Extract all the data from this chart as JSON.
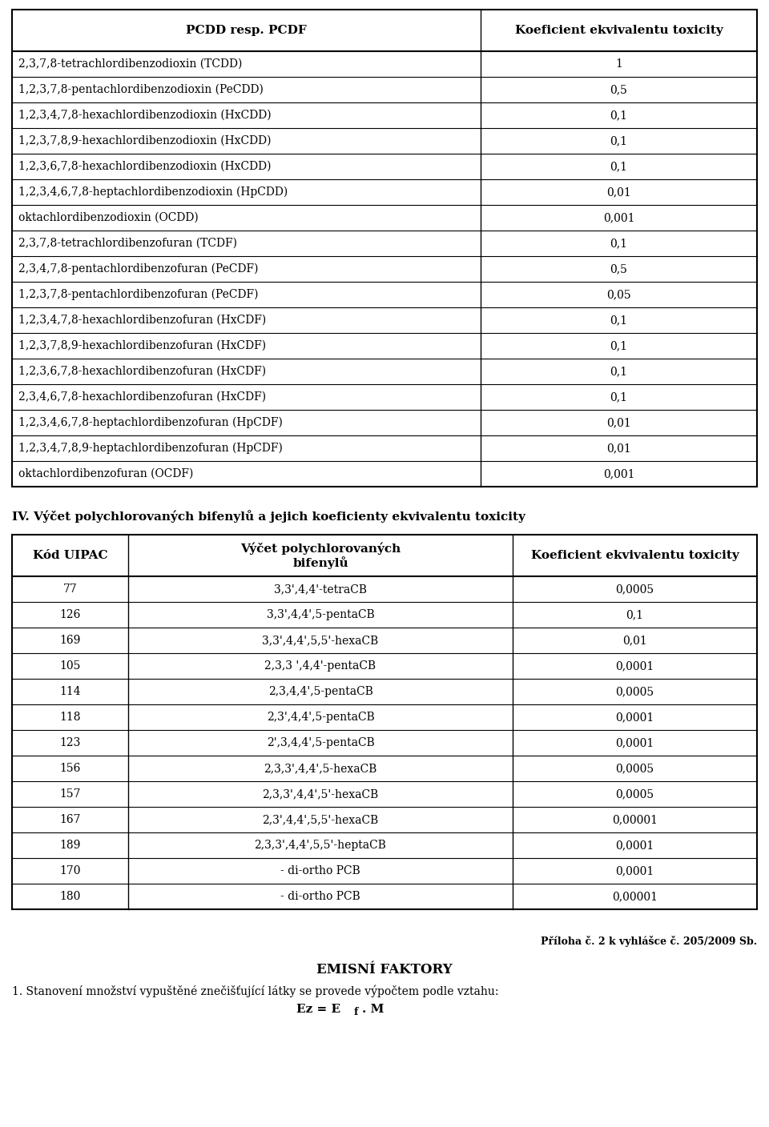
{
  "table1_headers": [
    "PCDD resp. PCDF",
    "Koeficient ekvivalentu toxicity"
  ],
  "table1_rows": [
    [
      "2,3,7,8-tetrachlordibenzodioxin (TCDD)",
      "1"
    ],
    [
      "1,2,3,7,8-pentachlordibenzodioxin (PeCDD)",
      "0,5"
    ],
    [
      "1,2,3,4,7,8-hexachlordibenzodioxin (HxCDD)",
      "0,1"
    ],
    [
      "1,2,3,7,8,9-hexachlordibenzodioxin (HxCDD)",
      "0,1"
    ],
    [
      "1,2,3,6,7,8-hexachlordibenzodioxin (HxCDD)",
      "0,1"
    ],
    [
      "1,2,3,4,6,7,8-heptachlordibenzodioxin (HpCDD)",
      "0,01"
    ],
    [
      "oktachlordibenzodioxin (OCDD)",
      "0,001"
    ],
    [
      "2,3,7,8-tetrachlordibenzofuran (TCDF)",
      "0,1"
    ],
    [
      "2,3,4,7,8-pentachlordibenzofuran (PeCDF)",
      "0,5"
    ],
    [
      "1,2,3,7,8-pentachlordibenzofuran (PeCDF)",
      "0,05"
    ],
    [
      "1,2,3,4,7,8-hexachlordibenzofuran (HxCDF)",
      "0,1"
    ],
    [
      "1,2,3,7,8,9-hexachlordibenzofuran (HxCDF)",
      "0,1"
    ],
    [
      "1,2,3,6,7,8-hexachlordibenzofuran (HxCDF)",
      "0,1"
    ],
    [
      "2,3,4,6,7,8-hexachlordibenzofuran (HxCDF)",
      "0,1"
    ],
    [
      "1,2,3,4,6,7,8-heptachlordibenzofuran (HpCDF)",
      "0,01"
    ],
    [
      "1,2,3,4,7,8,9-heptachlordibenzofuran (HpCDF)",
      "0,01"
    ],
    [
      "oktachlordibenzofuran (OCDF)",
      "0,001"
    ]
  ],
  "section_title": "IV. Výčet polychlorovaných bifenylů a jejich koeficienty ekvivalentu toxicity",
  "table2_headers": [
    "Kód UIPAC",
    "Výčet polychlorovaných\nbifenylů",
    "Koeficient ekvivalentu toxicity"
  ],
  "table2_rows": [
    [
      "77",
      "3,3',4,4'-tetraCB",
      "0,0005"
    ],
    [
      "126",
      "3,3',4,4',5-pentaCB",
      "0,1"
    ],
    [
      "169",
      "3,3',4,4',5,5'-hexaCB",
      "0,01"
    ],
    [
      "105",
      "2,3,3 ',4,4'-pentaCB",
      "0,0001"
    ],
    [
      "114",
      "2,3,4,4',5-pentaCB",
      "0,0005"
    ],
    [
      "118",
      "2,3',4,4',5-pentaCB",
      "0,0001"
    ],
    [
      "123",
      "2',3,4,4',5-pentaCB",
      "0,0001"
    ],
    [
      "156",
      "2,3,3',4,4',5-hexaCB",
      "0,0005"
    ],
    [
      "157",
      "2,3,3',4,4',5'-hexaCB",
      "0,0005"
    ],
    [
      "167",
      "2,3',4,4',5,5'-hexaCB",
      "0,00001"
    ],
    [
      "189",
      "2,3,3',4,4',5,5'-heptaCB",
      "0,0001"
    ],
    [
      "170",
      "- di-ortho PCB",
      "0,0001"
    ],
    [
      "180",
      "- di-ortho PCB",
      "0,00001"
    ]
  ],
  "footer_right": "Příloha č. 2 k vyhlášce č. 205/2009 Sb.",
  "footer_title": "EMISNÍ FAKTORY",
  "footer_text": "1. Stanovení množství vypuštěné znečišťující látky se provede výpočtem podle vztahu:",
  "footer_formula": "Ez = E",
  "footer_formula2": "f",
  "footer_formula3": ". M",
  "bg_color": "#ffffff",
  "text_color": "#000000",
  "line_color": "#000000",
  "header_fontsize": 11,
  "body_fontsize": 10,
  "small_fontsize": 9
}
